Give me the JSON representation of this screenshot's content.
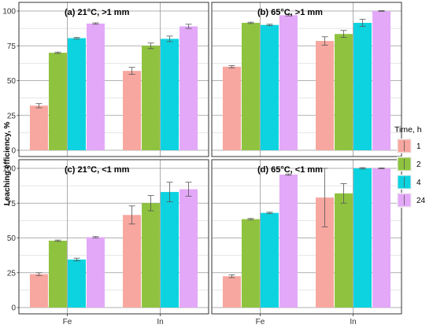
{
  "chart_data": {
    "type": "bar",
    "ylabel": "Leaching efficiency, %",
    "ylim": [
      0,
      100
    ],
    "yticks": [
      0,
      25,
      50,
      75,
      100
    ],
    "categories": [
      "Fe",
      "In"
    ],
    "legend": {
      "title": "Time, h",
      "position": "right",
      "entries": [
        "1",
        "2",
        "4",
        "24"
      ]
    },
    "colors": {
      "1": "#f7a79f",
      "2": "#8fc33f",
      "4": "#0cd3df",
      "24": "#e3a8f8",
      "panel_border": "#333333",
      "grid_major": "#999999",
      "grid_minor": "#cccccc"
    },
    "grid": true,
    "panels": [
      {
        "title": "(a)   21°C, >1 mm",
        "series": [
          {
            "name": "1",
            "values": [
              32,
              57
            ],
            "errors": [
              1.5,
              2.5
            ]
          },
          {
            "name": "2",
            "values": [
              70,
              75
            ],
            "errors": [
              0.5,
              2.0
            ]
          },
          {
            "name": "4",
            "values": [
              80.5,
              80
            ],
            "errors": [
              0.5,
              2.0
            ]
          },
          {
            "name": "24",
            "values": [
              91,
              89
            ],
            "errors": [
              0.5,
              1.5
            ]
          }
        ]
      },
      {
        "title": "(b)   65°C, >1 mm",
        "series": [
          {
            "name": "1",
            "values": [
              60,
              78.5
            ],
            "errors": [
              0.8,
              3.0
            ]
          },
          {
            "name": "2",
            "values": [
              91.5,
              83.5
            ],
            "errors": [
              0.5,
              2.5
            ]
          },
          {
            "name": "4",
            "values": [
              90,
              91.5
            ],
            "errors": [
              0.5,
              2.5
            ]
          },
          {
            "name": "24",
            "values": [
              97,
              100
            ],
            "errors": [
              0.5,
              0.3
            ]
          }
        ]
      },
      {
        "title": "(c)   21°C, <1 mm",
        "series": [
          {
            "name": "1",
            "values": [
              24,
              66.5
            ],
            "errors": [
              1.0,
              6.5
            ]
          },
          {
            "name": "2",
            "values": [
              48,
              75
            ],
            "errors": [
              0.5,
              5.5
            ]
          },
          {
            "name": "4",
            "values": [
              34.5,
              83
            ],
            "errors": [
              1.0,
              7.0
            ]
          },
          {
            "name": "24",
            "values": [
              50.5,
              85
            ],
            "errors": [
              0.5,
              5.0
            ]
          }
        ]
      },
      {
        "title": "(d)   65°C, <1 mm",
        "series": [
          {
            "name": "1",
            "values": [
              22.5,
              79
            ],
            "errors": [
              1.0,
              21.0
            ]
          },
          {
            "name": "2",
            "values": [
              63.5,
              82
            ],
            "errors": [
              0.5,
              7.0
            ]
          },
          {
            "name": "4",
            "values": [
              68,
              100
            ],
            "errors": [
              0.5,
              0.5
            ]
          },
          {
            "name": "24",
            "values": [
              95.5,
              100
            ],
            "errors": [
              0.5,
              0.3
            ]
          }
        ]
      }
    ]
  }
}
